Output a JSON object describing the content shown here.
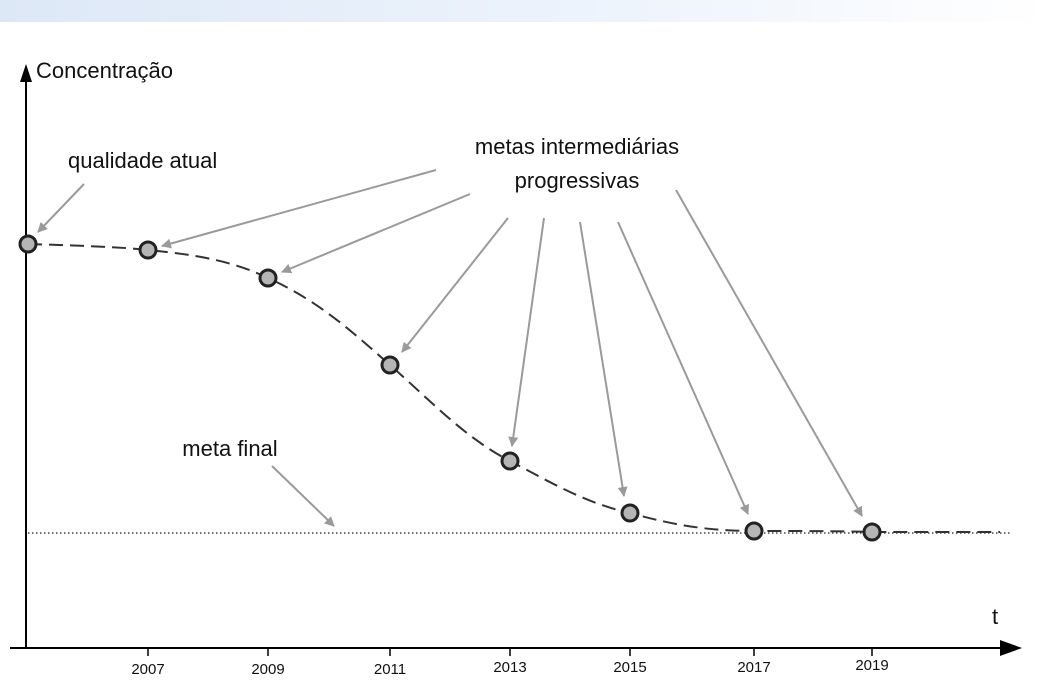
{
  "diagram": {
    "y_axis_label": "Concentração",
    "x_axis_label": "t",
    "labels": {
      "current_quality": "qualidade atual",
      "intermediate_line1": "metas intermediárias",
      "intermediate_line2": "progressivas",
      "final_goal": "meta final"
    },
    "ticks": [
      "2007",
      "2009",
      "2011",
      "2013",
      "2015",
      "2017",
      "2019"
    ],
    "colors": {
      "axis": "#000000",
      "curve": "#333333",
      "arrow": "#9a9a9a",
      "point_fill": "#b5b5b5",
      "point_stroke": "#222222"
    }
  }
}
